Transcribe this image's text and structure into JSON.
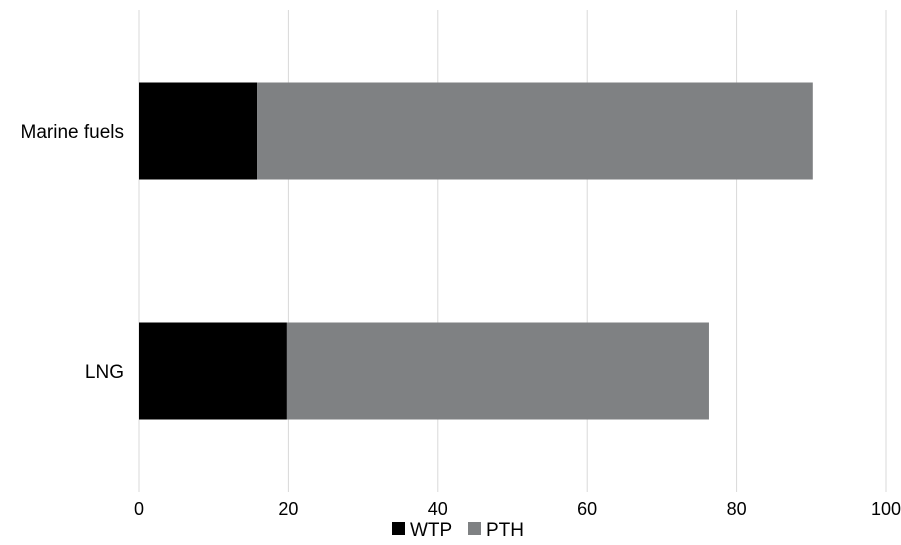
{
  "chart_data": {
    "type": "bar",
    "orientation": "horizontal",
    "stacked": true,
    "categories": [
      "Marine fuels",
      "LNG"
    ],
    "series": [
      {
        "name": "WTP",
        "values": [
          15.8,
          19.8
        ],
        "color": "#000000"
      },
      {
        "name": "PTH",
        "values": [
          74.4,
          56.5
        ],
        "color": "#7f8183"
      }
    ],
    "title": "",
    "xlabel": "",
    "ylabel": "",
    "xlim": [
      0,
      100
    ],
    "xticks": [
      0,
      20,
      40,
      60,
      80,
      100
    ],
    "grid": "vertical",
    "legend_position": "bottom"
  }
}
